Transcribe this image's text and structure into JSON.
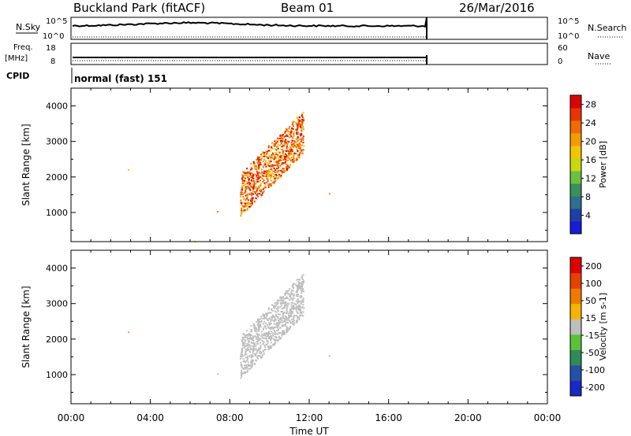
{
  "header": {
    "station": "Buckland Park (fitACF)",
    "beam": "Beam 01",
    "date": "26/Mar/2016"
  },
  "left_labels": {
    "nsky": "N.Sky",
    "freq": "Freq.",
    "freq_unit": "[MHz]",
    "cpid": "CPID"
  },
  "right_labels": {
    "nsearch": "N.Search",
    "nave": "Nave"
  },
  "mini_axes": {
    "noise_top": "10^5",
    "noise_bottom": "10^0",
    "freq_top": "18",
    "freq_bottom": "8",
    "nave_top": "60",
    "nave_bottom": "0"
  },
  "cpid_text": "normal (fast) 151",
  "chart_data": [
    {
      "type": "heatmap",
      "panel": "power",
      "ylabel": "Slant Range [km]",
      "yticks": [
        "1000",
        "2000",
        "3000",
        "4000"
      ],
      "ylim": [
        180,
        4500
      ],
      "xlim_hours": [
        0,
        24
      ],
      "xlabel": "Time UT",
      "xticks": [
        "00:00",
        "04:00",
        "08:00",
        "12:00",
        "16:00",
        "20:00",
        "00:00"
      ],
      "colorbar": {
        "label": "Power [dB]",
        "ticks": [
          "4",
          "8",
          "12",
          "16",
          "20",
          "24",
          "28"
        ],
        "range": [
          0,
          30
        ],
        "colors": [
          "#1a1ad9",
          "#1f3fa6",
          "#2f6f8f",
          "#3a8f5a",
          "#6cc040",
          "#c8d810",
          "#f4c400",
          "#f59a00",
          "#f06a00",
          "#e83500",
          "#e00000"
        ]
      },
      "data_end_hour": 18.0
    },
    {
      "type": "heatmap",
      "panel": "velocity",
      "ylabel": "Slant Range [km]",
      "yticks": [
        "1000",
        "2000",
        "3000",
        "4000"
      ],
      "ylim": [
        180,
        4500
      ],
      "xlim_hours": [
        0,
        24
      ],
      "xlabel": "Time UT",
      "xticks": [
        "00:00",
        "04:00",
        "08:00",
        "12:00",
        "16:00",
        "20:00",
        "00:00"
      ],
      "colorbar": {
        "label": "Velocity [m s-1]",
        "ticks": [
          "200",
          "100",
          "50",
          "15",
          "-15",
          "-50",
          "-100",
          "-200"
        ],
        "range": [
          -250,
          250
        ],
        "colors": [
          "#1a28c8",
          "#2450a8",
          "#2f8a5a",
          "#5cc038",
          "#bebebe",
          "#f4b400",
          "#f07a00",
          "#e84000",
          "#e00000"
        ]
      },
      "data_end_hour": 18.0
    }
  ]
}
